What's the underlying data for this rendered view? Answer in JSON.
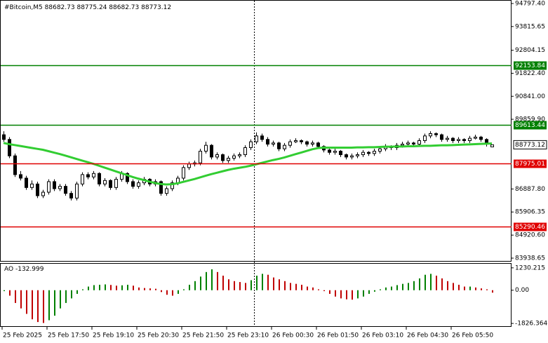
{
  "chart_data": [
    {
      "type": "candlestick",
      "symbol": "#Bitcoin,M5",
      "ohlc": [
        [
          89200,
          89350,
          88900,
          89000
        ],
        [
          89000,
          89100,
          88200,
          88300
        ],
        [
          88300,
          88400,
          87400,
          87500
        ],
        [
          87500,
          87650,
          87250,
          87350
        ],
        [
          87350,
          87450,
          86850,
          86950
        ],
        [
          86950,
          87250,
          86850,
          87100
        ],
        [
          87100,
          87200,
          86500,
          86600
        ],
        [
          86600,
          86850,
          86500,
          86750
        ],
        [
          86750,
          87300,
          86650,
          87200
        ],
        [
          87200,
          87300,
          86800,
          86900
        ],
        [
          86900,
          87100,
          86800,
          87000
        ],
        [
          87000,
          87100,
          86600,
          86700
        ],
        [
          86700,
          86800,
          86400,
          86500
        ],
        [
          86500,
          87200,
          86400,
          87100
        ],
        [
          87100,
          87600,
          87000,
          87500
        ],
        [
          87500,
          87600,
          87300,
          87400
        ],
        [
          87400,
          87650,
          87300,
          87550
        ],
        [
          87550,
          87600,
          87000,
          87100
        ],
        [
          87100,
          87350,
          87000,
          87250
        ],
        [
          87250,
          87300,
          86850,
          86950
        ],
        [
          86950,
          87400,
          86850,
          87300
        ],
        [
          87300,
          87650,
          87200,
          87550
        ],
        [
          87550,
          87600,
          87100,
          87200
        ],
        [
          87200,
          87300,
          86900,
          87000
        ],
        [
          87000,
          87250,
          86900,
          87150
        ],
        [
          87150,
          87400,
          87050,
          87300
        ],
        [
          87300,
          87350,
          87000,
          87100
        ],
        [
          87100,
          87300,
          87000,
          87200
        ],
        [
          87200,
          87250,
          86600,
          86700
        ],
        [
          86700,
          87000,
          86600,
          86900
        ],
        [
          86900,
          87250,
          86800,
          87150
        ],
        [
          87150,
          87450,
          87050,
          87350
        ],
        [
          87350,
          87900,
          87250,
          87800
        ],
        [
          87800,
          88050,
          87700,
          87950
        ],
        [
          87950,
          88100,
          87850,
          88000
        ],
        [
          88000,
          88600,
          87900,
          88500
        ],
        [
          88500,
          88900,
          88400,
          88750
        ],
        [
          88750,
          88800,
          88150,
          88250
        ],
        [
          88250,
          88450,
          88150,
          88350
        ],
        [
          88350,
          88400,
          88000,
          88100
        ],
        [
          88100,
          88300,
          88000,
          88200
        ],
        [
          88200,
          88400,
          88100,
          88300
        ],
        [
          88300,
          88450,
          88200,
          88350
        ],
        [
          88350,
          88750,
          88250,
          88650
        ],
        [
          88650,
          89000,
          88550,
          88900
        ],
        [
          88900,
          89300,
          88800,
          89150
        ],
        [
          89150,
          89250,
          88900,
          89000
        ],
        [
          89000,
          89100,
          88700,
          88800
        ],
        [
          88800,
          88950,
          88700,
          88850
        ],
        [
          88850,
          88900,
          88500,
          88600
        ],
        [
          88600,
          88850,
          88500,
          88750
        ],
        [
          88750,
          89000,
          88650,
          88900
        ],
        [
          88900,
          89050,
          88850,
          88950
        ],
        [
          88950,
          89000,
          88800,
          88900
        ],
        [
          88900,
          88950,
          88700,
          88800
        ],
        [
          88800,
          88950,
          88700,
          88850
        ],
        [
          88850,
          88900,
          88600,
          88700
        ],
        [
          88700,
          88750,
          88450,
          88550
        ],
        [
          88550,
          88600,
          88350,
          88450
        ],
        [
          88450,
          88600,
          88350,
          88500
        ],
        [
          88500,
          88550,
          88250,
          88350
        ],
        [
          88350,
          88400,
          88150,
          88250
        ],
        [
          88250,
          88400,
          88150,
          88300
        ],
        [
          88300,
          88450,
          88200,
          88350
        ],
        [
          88350,
          88550,
          88250,
          88450
        ],
        [
          88450,
          88500,
          88300,
          88400
        ],
        [
          88400,
          88600,
          88300,
          88500
        ],
        [
          88500,
          88700,
          88400,
          88600
        ],
        [
          88600,
          88800,
          88500,
          88700
        ],
        [
          88700,
          88750,
          88550,
          88650
        ],
        [
          88650,
          88850,
          88550,
          88750
        ],
        [
          88750,
          88900,
          88650,
          88800
        ],
        [
          88800,
          88950,
          88700,
          88850
        ],
        [
          88850,
          88900,
          88700,
          88800
        ],
        [
          88800,
          89050,
          88700,
          88950
        ],
        [
          88950,
          89250,
          88850,
          89150
        ],
        [
          89150,
          89350,
          89050,
          89250
        ],
        [
          89250,
          89300,
          89100,
          89200
        ],
        [
          89200,
          89250,
          88900,
          89000
        ],
        [
          89000,
          89150,
          88900,
          89050
        ],
        [
          89050,
          89100,
          88850,
          88950
        ],
        [
          88950,
          89100,
          88850,
          89000
        ],
        [
          89000,
          89050,
          88850,
          88950
        ],
        [
          88950,
          89150,
          88850,
          89050
        ],
        [
          89050,
          89200,
          89000,
          89100
        ],
        [
          89100,
          89150,
          88900,
          89000
        ],
        [
          89000,
          89050,
          88700,
          88800
        ],
        [
          88682.73,
          88775.24,
          88682.73,
          88773.12
        ]
      ],
      "candle_color": "#000000",
      "ma": {
        "color": "#32cd32",
        "values": [
          88850,
          88800,
          88760,
          88720,
          88680,
          88640,
          88600,
          88560,
          88500,
          88440,
          88380,
          88310,
          88240,
          88170,
          88100,
          88030,
          87960,
          87880,
          87800,
          87720,
          87640,
          87560,
          87480,
          87400,
          87330,
          87270,
          87200,
          87140,
          87100,
          87080,
          87090,
          87130,
          87190,
          87250,
          87310,
          87380,
          87450,
          87520,
          87580,
          87640,
          87700,
          87750,
          87790,
          87830,
          87880,
          87940,
          88000,
          88060,
          88120,
          88170,
          88230,
          88300,
          88370,
          88440,
          88510,
          88580,
          88630,
          88650,
          88650,
          88650,
          88650,
          88650,
          88650,
          88660,
          88660,
          88670,
          88670,
          88680,
          88690,
          88690,
          88700,
          88700,
          88710,
          88710,
          88720,
          88730,
          88730,
          88740,
          88750,
          88750,
          88760,
          88770,
          88780,
          88790,
          88800,
          88810,
          88820,
          88830
        ]
      },
      "levels": [
        {
          "value": 92153.84,
          "color": "#008000"
        },
        {
          "value": 89613.44,
          "color": "#008000"
        },
        {
          "value": 87975.01,
          "color": "#e00000"
        },
        {
          "value": 85290.46,
          "color": "#e00000"
        }
      ],
      "ylim": [
        83789,
        94947
      ],
      "yticks": [
        {
          "value": 94797.4,
          "label": "94797.40"
        },
        {
          "value": 93815.65,
          "label": "93815.65"
        },
        {
          "value": 92804.15,
          "label": "92804.15"
        },
        {
          "value": 91822.4,
          "label": "91822.40"
        },
        {
          "value": 90841,
          "label": "90841.00"
        },
        {
          "value": 89859.9,
          "label": "89859.90"
        },
        {
          "value": 86887.8,
          "label": "86887.80"
        },
        {
          "value": 85906.35,
          "label": "85906.35"
        },
        {
          "value": 84920.6,
          "label": "84920.60"
        },
        {
          "value": 83938.65,
          "label": "83938.65"
        }
      ],
      "xticks": [
        {
          "value": 0,
          "label": "25 Feb 2025"
        },
        {
          "value": 8,
          "label": "25 Feb 17:50"
        },
        {
          "value": 16,
          "label": "25 Feb 19:10"
        },
        {
          "value": 24,
          "label": "25 Feb 20:30"
        },
        {
          "value": 32,
          "label": "25 Feb 21:50"
        },
        {
          "value": 40,
          "label": "25 Feb 23:10"
        },
        {
          "value": 48,
          "label": "26 Feb 00:30"
        },
        {
          "value": 56,
          "label": "26 Feb 01:50"
        },
        {
          "value": 64,
          "label": "26 Feb 03:10"
        },
        {
          "value": 72,
          "label": "26 Feb 04:30"
        },
        {
          "value": 80,
          "label": "26 Feb 05:50"
        }
      ]
    },
    {
      "type": "bar",
      "name": "AO",
      "up_color": "#008000",
      "down_color": "#c00000",
      "values": [
        -50,
        -300,
        -700,
        -1000,
        -1300,
        -1600,
        -1750,
        -1800,
        -1650,
        -1400,
        -1000,
        -700,
        -450,
        -200,
        50,
        200,
        280,
        300,
        320,
        290,
        250,
        270,
        300,
        250,
        150,
        120,
        100,
        80,
        -100,
        -250,
        -300,
        -200,
        50,
        300,
        500,
        750,
        1000,
        1150,
        1000,
        800,
        600,
        500,
        450,
        400,
        550,
        800,
        900,
        850,
        700,
        600,
        500,
        400,
        350,
        300,
        200,
        150,
        50,
        -50,
        -200,
        -350,
        -450,
        -500,
        -520,
        -450,
        -350,
        -200,
        -80,
        50,
        150,
        200,
        280,
        350,
        400,
        500,
        650,
        850,
        900,
        800,
        650,
        500,
        400,
        300,
        200,
        200,
        150,
        100,
        50,
        -132.999
      ],
      "ylim": [
        -1977,
        1456
      ],
      "yticks": [
        {
          "value": 1230.215,
          "label": "1230.215"
        },
        {
          "value": 0,
          "label": "0.00"
        },
        {
          "value": -1826.364,
          "label": "-1826.364"
        }
      ]
    }
  ]
}
